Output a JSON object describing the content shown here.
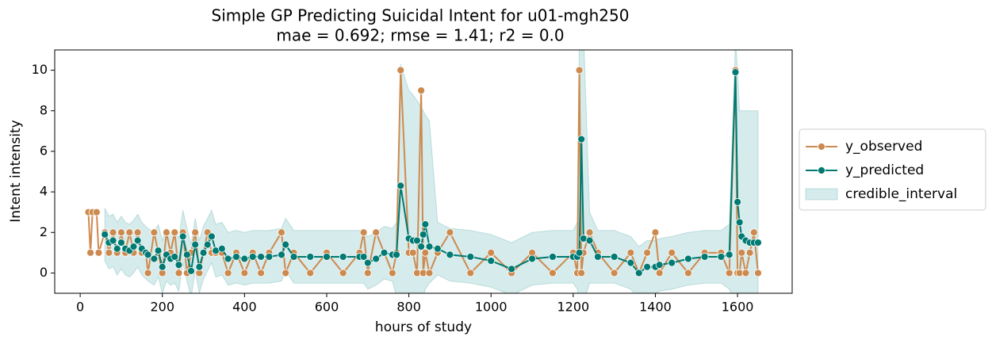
{
  "chart_data": {
    "type": "line",
    "title": "Simple GP Predicting Suicidal Intent for u01-mgh250",
    "subtitle": "mae = 0.692; rmse = 1.41; r2 = 0.0",
    "x_label": "hours of study",
    "y_label": "Intent intensity",
    "xlim": [
      -62,
      1733
    ],
    "ylim": [
      -1,
      11
    ],
    "xticks": [
      0,
      200,
      400,
      600,
      800,
      1000,
      1200,
      1400,
      1600
    ],
    "yticks": [
      0,
      2,
      4,
      6,
      8,
      10
    ],
    "legend": "right",
    "x": [
      20,
      25,
      30,
      40,
      45,
      60,
      70,
      80,
      90,
      100,
      110,
      120,
      130,
      140,
      150,
      160,
      165,
      180,
      190,
      200,
      210,
      220,
      230,
      240,
      250,
      260,
      270,
      280,
      290,
      300,
      310,
      320,
      330,
      345,
      360,
      380,
      400,
      420,
      440,
      460,
      490,
      500,
      520,
      560,
      600,
      640,
      680,
      690,
      700,
      720,
      740,
      760,
      770,
      780,
      800,
      810,
      820,
      830,
      835,
      840,
      850,
      870,
      900,
      950,
      1000,
      1050,
      1100,
      1150,
      1200,
      1210,
      1215,
      1220,
      1225,
      1240,
      1260,
      1300,
      1340,
      1360,
      1380,
      1400,
      1410,
      1440,
      1480,
      1520,
      1560,
      1580,
      1595,
      1600,
      1605,
      1610,
      1620,
      1630,
      1640,
      1650
    ],
    "series": [
      {
        "name": "y_observed",
        "color": "#cd8a4f",
        "kind": "line",
        "values": [
          3,
          1,
          3,
          3,
          1,
          2,
          1,
          2,
          1,
          2,
          1,
          2,
          1,
          2,
          1,
          1,
          0,
          2,
          1,
          0,
          2,
          1,
          2,
          0,
          2,
          0,
          1,
          2,
          0,
          1,
          2,
          1,
          1,
          1,
          0,
          1,
          0,
          1,
          0,
          1,
          2,
          0,
          1,
          0,
          1,
          0,
          1,
          2,
          0,
          2,
          1,
          0,
          1,
          10,
          1,
          1,
          0,
          9,
          0,
          1,
          0,
          1,
          2,
          0,
          1,
          0,
          1,
          0,
          1,
          0,
          10,
          0,
          1,
          2,
          1,
          0,
          1,
          0,
          1,
          2,
          0,
          1,
          0,
          1,
          1,
          0,
          10,
          0,
          0,
          1,
          0,
          1,
          2,
          0
        ]
      },
      {
        "name": "y_predicted",
        "color": "#007a72",
        "kind": "line",
        "values": [
          null,
          null,
          null,
          null,
          null,
          1.9,
          1.5,
          1.6,
          1.2,
          1.5,
          1.2,
          1.1,
          1.3,
          1.6,
          1.2,
          1.0,
          0.9,
          0.7,
          1.1,
          0.3,
          0.9,
          0.7,
          0.8,
          0.4,
          1.8,
          0.9,
          0.1,
          1.4,
          0.3,
          1.0,
          1.4,
          1.8,
          1.1,
          1.2,
          0.7,
          0.8,
          0.7,
          0.8,
          0.8,
          0.8,
          0.9,
          1.4,
          0.8,
          0.8,
          0.8,
          0.8,
          0.8,
          0.8,
          0.5,
          0.7,
          1.0,
          0.9,
          0.9,
          4.3,
          1.7,
          1.6,
          1.6,
          1.3,
          1.9,
          2.4,
          1.3,
          1.2,
          0.9,
          0.8,
          0.6,
          0.2,
          0.7,
          0.8,
          0.8,
          0.8,
          1.0,
          6.6,
          1.7,
          1.6,
          0.8,
          0.8,
          0.5,
          0.0,
          0.3,
          0.3,
          0.4,
          0.5,
          0.7,
          0.8,
          0.8,
          0.9,
          9.9,
          3.5,
          2.5,
          1.8,
          1.6,
          1.5,
          1.5,
          1.5
        ]
      },
      {
        "name": "credible_interval",
        "color": "#008080",
        "kind": "band",
        "lower": [
          null,
          null,
          null,
          null,
          null,
          0.6,
          0.2,
          0.3,
          -0.1,
          0.2,
          -0.1,
          -0.2,
          0,
          0.3,
          -0.1,
          -0.3,
          -0.4,
          -0.6,
          -0.2,
          -1.0,
          -0.4,
          -0.6,
          -0.5,
          -0.9,
          0.5,
          -0.4,
          -1.2,
          0.1,
          -1.0,
          -0.3,
          0.1,
          0.5,
          -0.2,
          -0.1,
          -0.6,
          -0.5,
          -0.6,
          -0.5,
          -0.5,
          -0.5,
          -0.4,
          0.1,
          -0.5,
          -0.5,
          -0.5,
          -0.5,
          -0.5,
          -0.5,
          -0.8,
          -0.6,
          -0.3,
          -0.4,
          -1.2,
          -1.5,
          -1.5,
          -1.5,
          -1.5,
          -1.5,
          -1.2,
          -0.8,
          -0.5,
          -0.1,
          -0.4,
          -0.5,
          -0.7,
          -1.1,
          -0.6,
          -0.5,
          -0.5,
          -0.8,
          -1.5,
          -1.5,
          -1.5,
          -0.5,
          -0.5,
          -0.5,
          -0.8,
          -1.3,
          -1.0,
          -1.0,
          -0.9,
          -0.8,
          -0.6,
          -0.5,
          -0.5,
          -0.8,
          -1.5,
          -1.5,
          -1.5,
          -1.5,
          -1.5,
          -1.5,
          -1.5,
          -1.5
        ],
        "upper": [
          null,
          null,
          null,
          null,
          null,
          3.2,
          2.8,
          2.9,
          2.5,
          2.8,
          2.5,
          2.4,
          2.6,
          2.9,
          2.5,
          2.3,
          2.2,
          2.0,
          2.4,
          1.6,
          2.2,
          2.0,
          2.1,
          1.7,
          3.1,
          2.2,
          1.4,
          2.7,
          1.6,
          2.3,
          2.7,
          3.1,
          2.4,
          2.5,
          2.0,
          2.1,
          2.0,
          2.1,
          2.1,
          2.1,
          2.2,
          2.7,
          2.1,
          2.1,
          2.1,
          2.1,
          2.1,
          2.1,
          1.8,
          2.0,
          2.3,
          2.2,
          2.5,
          10.3,
          9.0,
          8.8,
          8.5,
          8.2,
          8.0,
          7.8,
          7.5,
          2.5,
          2.2,
          2.1,
          1.9,
          1.5,
          2.0,
          2.1,
          2.1,
          2.5,
          12,
          12,
          12,
          3.0,
          2.1,
          2.1,
          1.8,
          1.3,
          1.6,
          1.6,
          1.7,
          1.8,
          2.0,
          2.1,
          2.1,
          2.4,
          11.5,
          10,
          8,
          8,
          8,
          8,
          8,
          8
        ]
      }
    ]
  }
}
